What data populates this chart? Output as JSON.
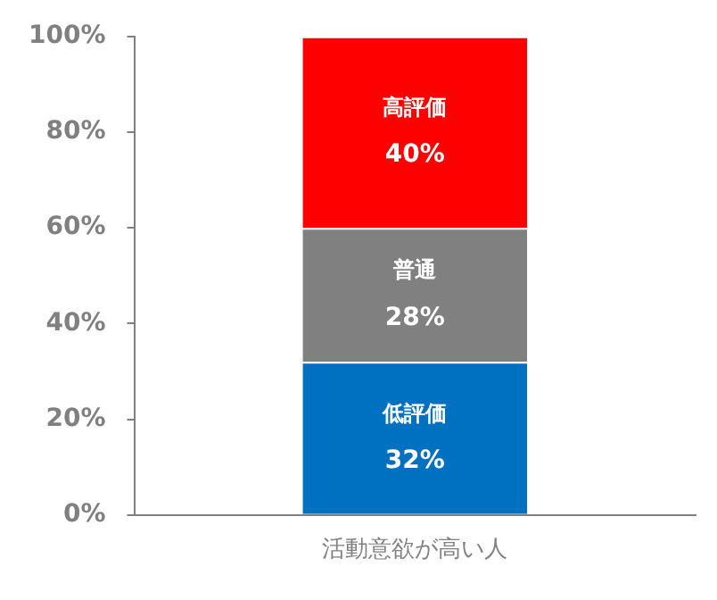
{
  "chart_data": {
    "type": "bar",
    "stacked": true,
    "categories": [
      "活動意欲が高い人"
    ],
    "ylim": [
      0,
      100
    ],
    "yticks": [
      {
        "value": 0,
        "label": "0%"
      },
      {
        "value": 20,
        "label": "20%"
      },
      {
        "value": 40,
        "label": "40%"
      },
      {
        "value": 60,
        "label": "60%"
      },
      {
        "value": 80,
        "label": "80%"
      },
      {
        "value": 100,
        "label": "100%"
      }
    ],
    "series": [
      {
        "name": "低評価",
        "color": "#0070c0",
        "values": [
          32
        ],
        "value_labels": [
          "32%"
        ]
      },
      {
        "name": "普通",
        "color": "#808080",
        "values": [
          28
        ],
        "value_labels": [
          "28%"
        ]
      },
      {
        "name": "高評価",
        "color": "#ff0000",
        "values": [
          40
        ],
        "value_labels": [
          "40%"
        ]
      }
    ]
  }
}
